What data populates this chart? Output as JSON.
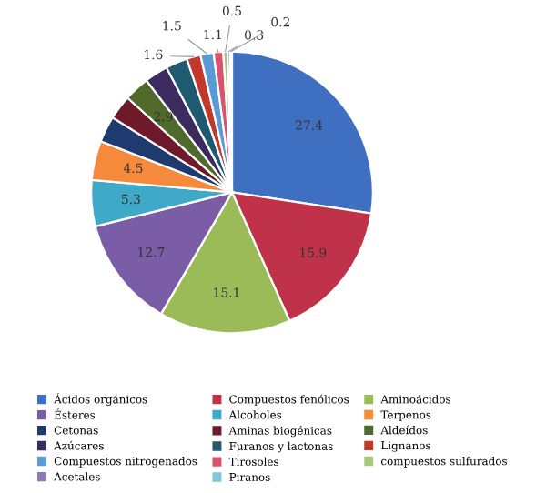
{
  "chart_data": {
    "type": "pie",
    "categories": [
      "Ácidos orgánicos",
      "Compuestos fenólicos",
      "Aminoácidos",
      "Ésteres",
      "Alcoholes",
      "Terpenos",
      "Cetonas",
      "Aminas biogénicas",
      "Aldeídos",
      "Azúcares",
      "Furanos y lactonas",
      "Lignanos",
      "Compuestos nitrogenados",
      "Tirosoles",
      "compuestos sulfurados",
      "Acetales",
      "Piranos"
    ],
    "values": [
      27.4,
      15.9,
      15.1,
      12.7,
      5.3,
      4.5,
      3.0,
      2.8,
      2.9,
      2.7,
      2.5,
      1.6,
      1.5,
      1.1,
      0.5,
      0.3,
      0.2
    ],
    "value_labels": [
      "27.4",
      "15.9",
      "15.1",
      "12.7",
      "5.3",
      "4.5",
      null,
      null,
      "2.9",
      null,
      null,
      "1.6",
      "1.5",
      "1.1",
      "0.5",
      "0.3",
      "0.2"
    ],
    "colors": [
      "#3f6fc1",
      "#bf3249",
      "#9bbb59",
      "#7b5ca6",
      "#40a9c9",
      "#f68a3c",
      "#1f3a6e",
      "#6e1a2a",
      "#4f6a2a",
      "#3c2b5e",
      "#1f5a70",
      "#c0392b",
      "#5b9bd5",
      "#d9536f",
      "#a9c97a",
      "#8a7ab8",
      "#7fc7d9"
    ],
    "legend": "bottom"
  }
}
